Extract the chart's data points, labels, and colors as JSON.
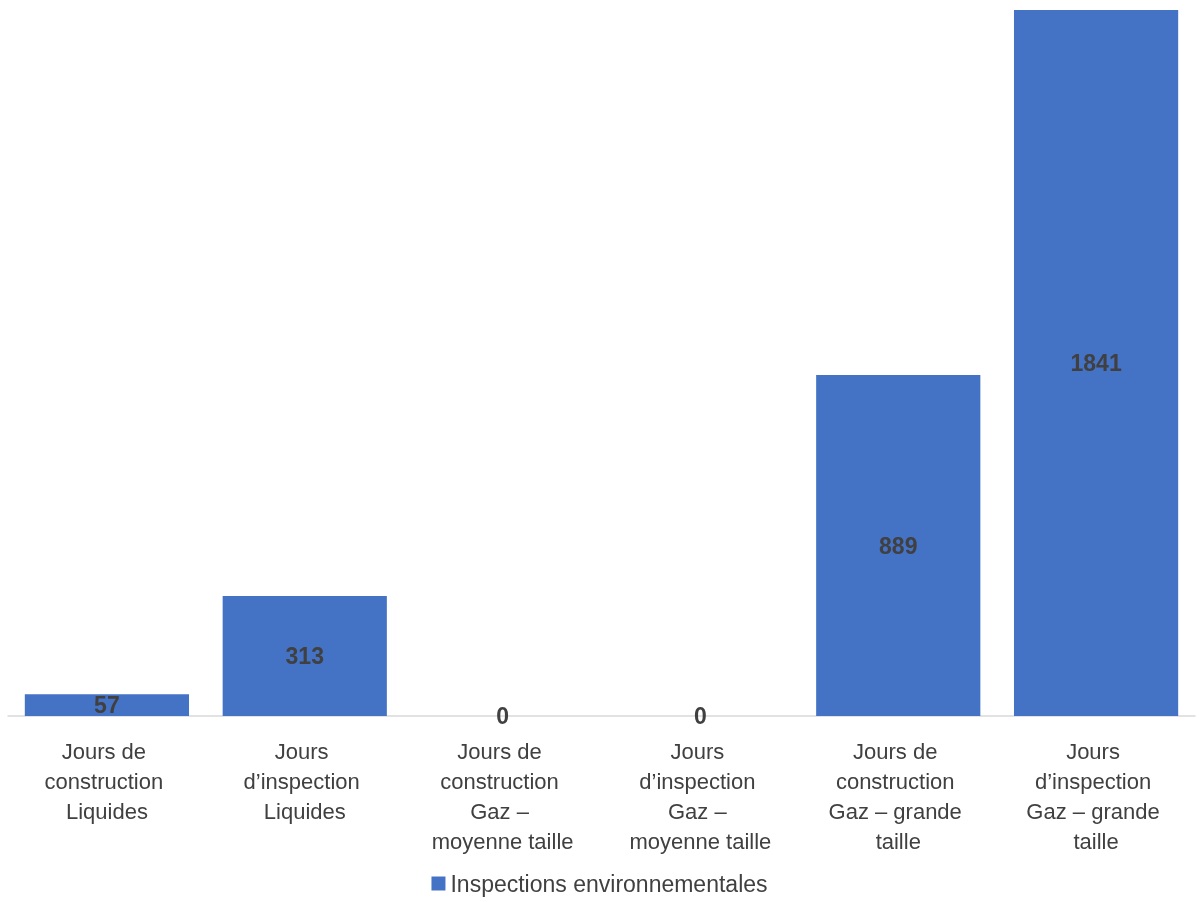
{
  "chart_data": {
    "type": "bar",
    "categories": [
      "Jours de construction Liquides",
      "Jours d’inspection Liquides",
      "Jours de construction Gaz – moyenne taille",
      "Jours d’inspection Gaz – moyenne taille",
      "Jours de construction Gaz – grande taille",
      "Jours d’inspection Gaz – grande taille"
    ],
    "series": [
      {
        "name": "Inspections environnementales",
        "color": "#4472c4",
        "values": [
          57,
          313,
          0,
          0,
          889,
          1841
        ]
      }
    ],
    "data_labels": true,
    "legend": "bottom"
  }
}
